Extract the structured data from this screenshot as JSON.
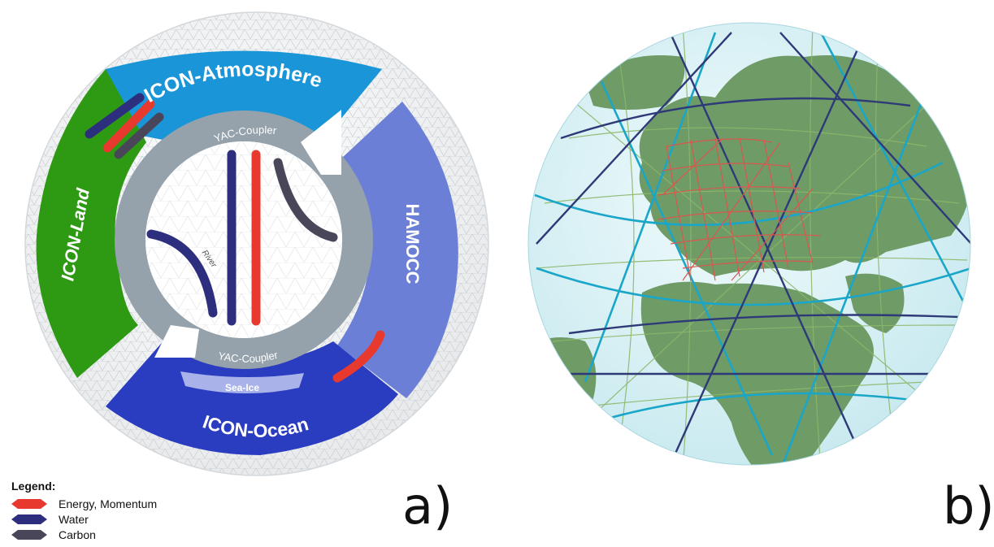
{
  "panel_a": {
    "components": {
      "atmosphere": "ICON-Atmosphere",
      "land": "ICON-Land",
      "hamocc": "HAMOCC",
      "ocean": "ICON-Ocean",
      "sea_ice": "Sea-Ice",
      "coupler_top": "YAC-Coupler",
      "coupler_bottom": "YAC-Coupler",
      "river": "River"
    },
    "colors": {
      "atmosphere": "#1a96d8",
      "land": "#2e9a14",
      "hamocc": "#6c7fd6",
      "ocean": "#2a3cbf",
      "sea_ice": "#a9b3ea",
      "coupler": "#95a2ab",
      "energy": "#e8392e",
      "water": "#2d2f7e",
      "carbon": "#4a4659"
    },
    "legend": {
      "title": "Legend:",
      "items": [
        {
          "label": "Energy, Momentum",
          "color": "#e8392e"
        },
        {
          "label": "Water",
          "color": "#2d2f7e"
        },
        {
          "label": "Carbon",
          "color": "#4a4659"
        }
      ]
    },
    "label": "a)"
  },
  "panel_b": {
    "label": "b)",
    "colors": {
      "ocean": "#d8f2f6",
      "land": "#6f9b67",
      "grid_fine": "#8cb76a",
      "grid_dark": "#2e3a78",
      "grid_cyan": "#1aa6c8",
      "grid_refined": "#d9574f"
    }
  }
}
